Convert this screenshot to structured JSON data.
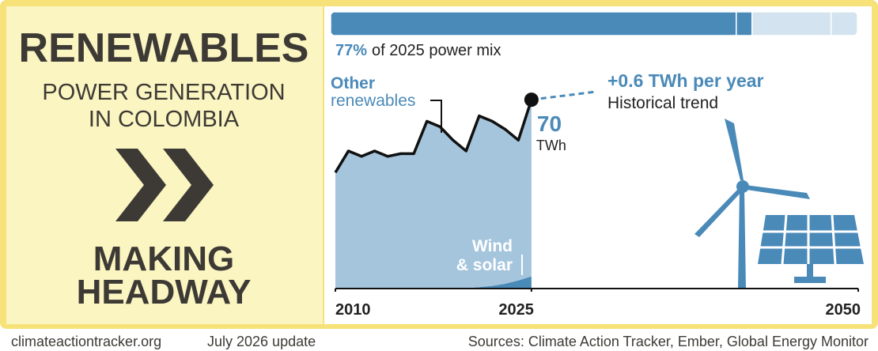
{
  "panel": {
    "title": "RENEWABLES",
    "subtitle": [
      "POWER GENERATION",
      "IN COLOMBIA"
    ],
    "status": [
      "MAKING",
      "HEADWAY"
    ]
  },
  "footer": {
    "site": "climateactiontracker.org",
    "update": "July 2026 update",
    "sources": "Sources: Climate Action Tracker, Ember, Global Energy Monitor"
  },
  "chart_data": [
    {
      "type": "bar",
      "subtitle": "of 2025 power mix",
      "series": [
        {
          "values": [
            77
          ],
          "value_labels": [
            "77%"
          ],
          "color": "#4a8ab8"
        },
        {
          "values": [
            3
          ],
          "color": "#4a8ab8"
        },
        {
          "values": [
            15
          ],
          "color": "#d3e4f0"
        },
        {
          "values": [
            5
          ],
          "color": "#d3e4f0"
        }
      ],
      "xlim": [
        0,
        100
      ]
    },
    {
      "type": "area",
      "x": [
        2010,
        2011,
        2012,
        2013,
        2014,
        2015,
        2016,
        2017,
        2018,
        2019,
        2020,
        2021,
        2022,
        2023,
        2024,
        2025
      ],
      "xlim": [
        2010,
        2050
      ],
      "xticks": [
        2010,
        2025,
        2050
      ],
      "ylim": [
        0,
        80
      ],
      "unit": "TWh",
      "series": [
        {
          "name": "Wind & solar",
          "color": "#4a8ab8",
          "values": [
            0.1,
            0.1,
            0.1,
            0.1,
            0.1,
            0.1,
            0.1,
            0.1,
            0.1,
            0.1,
            0.2,
            0.5,
            1,
            1.8,
            3,
            4.5
          ]
        },
        {
          "name": "Other renewables",
          "color": "#a5c5dd",
          "values": [
            42.9,
            50.9,
            48.9,
            50.9,
            48.9,
            49.9,
            49.9,
            61.9,
            59.9,
            54.9,
            50.8,
            63.5,
            61,
            57.2,
            52,
            65.5
          ]
        }
      ],
      "total": {
        "color": "#111111",
        "values": [
          43,
          51,
          49,
          51,
          49,
          50,
          50,
          62,
          60,
          55,
          51,
          64,
          62,
          59,
          55,
          70
        ]
      },
      "trend": {
        "label": "+0.6 TWh per year",
        "name": "Historical trend",
        "color": "#4a8ab8",
        "x": [
          2025,
          2030
        ],
        "values": [
          70,
          73
        ]
      }
    }
  ]
}
